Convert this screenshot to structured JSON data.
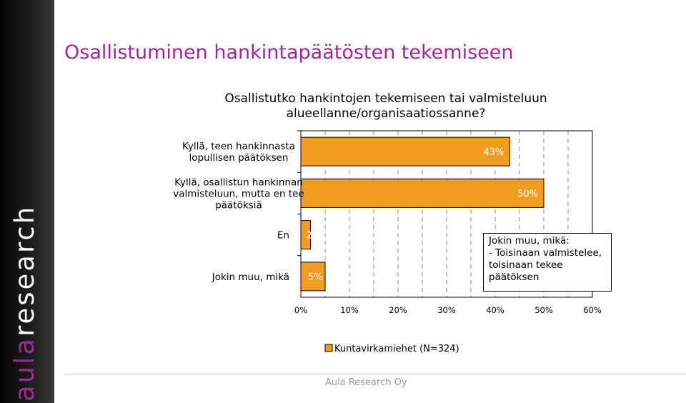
{
  "brand": {
    "name": "aularesearch",
    "part1": "aula",
    "part2": "research",
    "part1_color": "#9b2a8f",
    "part2_color": "#ffffff"
  },
  "page": {
    "title": "Osallistuminen hankintapäätösten tekemiseen",
    "title_color": "#a4249a"
  },
  "chart_data": {
    "type": "bar",
    "orientation": "horizontal",
    "title_lines": [
      "Osallistutko hankintojen tekemiseen tai valmisteluun",
      "alueellanne/organisaatiossanne?"
    ],
    "categories": [
      [
        "Kyllä, teen hankinnasta",
        "lopullisen päätöksen"
      ],
      [
        "Kyllä, osallistun hankinnan",
        "valmisteluun, mutta en tee",
        "päätöksiä"
      ],
      [
        "En"
      ],
      [
        "Jokin muu, mikä"
      ]
    ],
    "series": [
      {
        "name": "Kuntavirkamiehet (N=324)",
        "values": [
          43,
          50,
          2,
          5
        ],
        "labels": [
          "43%",
          "50%",
          "2",
          "5%"
        ],
        "color": "#f29c1f"
      }
    ],
    "xlim": [
      0,
      60
    ],
    "xticks": [
      "0%",
      "10%",
      "20%",
      "30%",
      "40%",
      "50%",
      "60%"
    ],
    "grid": true,
    "legend_position": "bottom"
  },
  "annotation": {
    "lines": [
      "Jokin muu, mikä:",
      "- Toisinaan valmistelee,",
      "toisinaan tekee",
      "päätöksen"
    ]
  },
  "footer": {
    "text": "Aula Research Oy"
  }
}
